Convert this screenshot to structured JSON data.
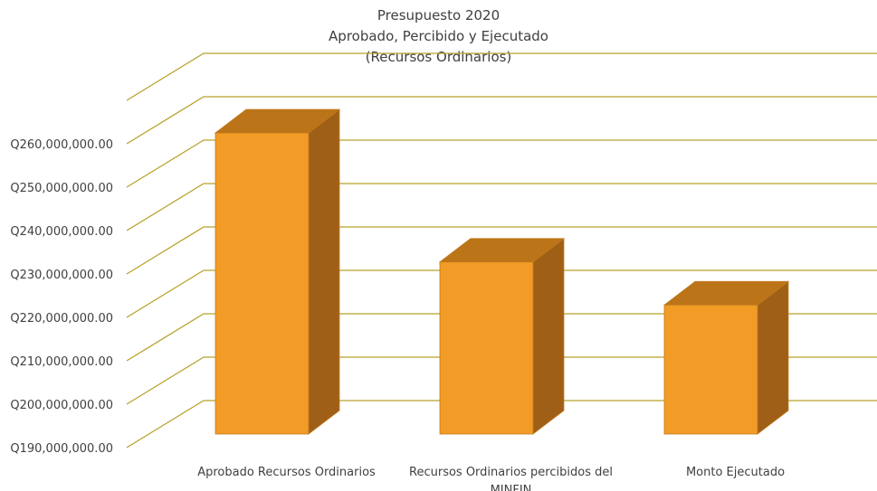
{
  "chart_data": {
    "type": "bar",
    "title_lines": [
      "Presupuesto 2020",
      "Aprobado, Percibido y Ejecutado",
      "(Recursos Ordinarios)"
    ],
    "categories": [
      [
        "Aprobado Recursos Ordinarios"
      ],
      [
        "Recursos Ordinarios percibidos del",
        "MINFIN"
      ],
      [
        "Monto Ejecutado"
      ]
    ],
    "values": [
      260000000,
      230000000,
      220000000
    ],
    "yticks": [
      "Q190,000,000.00",
      "Q200,000,000.00",
      "Q210,000,000.00",
      "Q220,000,000.00",
      "Q230,000,000.00",
      "Q240,000,000.00",
      "Q250,000,000.00",
      "Q260,000,000.00"
    ],
    "ylim": [
      190000000,
      270000000
    ],
    "ytick_step": 10000000,
    "grid": true,
    "style": "3d-column",
    "colors": {
      "bar_front": "#F29B26",
      "bar_side": "#A05F16",
      "bar_top": "#BC7418",
      "bar_edge": "#C07A1E",
      "grid": "#B8A22A",
      "text": "#404040"
    }
  }
}
